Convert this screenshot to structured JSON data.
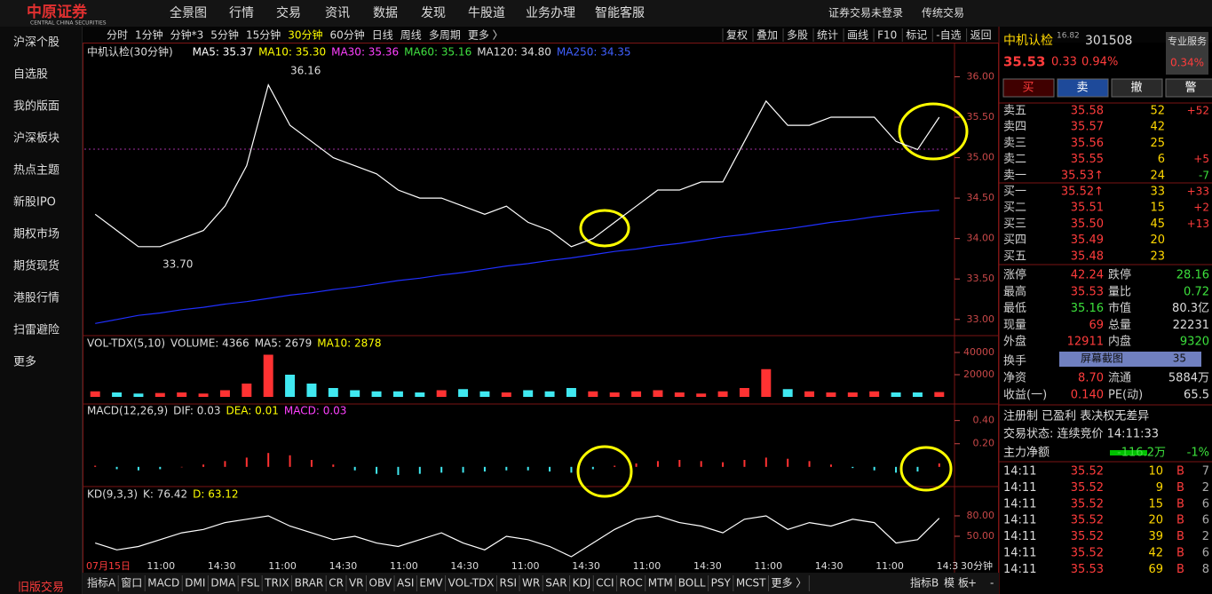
{
  "top_bar": {
    "logo": "中原证券",
    "logo_en": "CENTRAL CHINA SECURITIES",
    "nav": [
      "全景图",
      "行情",
      "交易",
      "资讯",
      "数据",
      "发现",
      "牛股道",
      "业务办理",
      "智能客服"
    ],
    "status": "证券交易未登录",
    "mode": "传统交易"
  },
  "sidebar": {
    "items": [
      "沪深个股",
      "自选股",
      "我的版面",
      "沪深板块",
      "热点主题",
      "新股IPO",
      "期权市场",
      "期货现货",
      "港股行情",
      "扫雷避险",
      "更多"
    ],
    "footer": "旧版交易"
  },
  "toolbar": {
    "periods": [
      "分时",
      "1分钟",
      "分钟*3",
      "5分钟",
      "15分钟",
      "30分钟",
      "60分钟",
      "日线",
      "周线",
      "多周期",
      "更多 〉"
    ],
    "active_period": "30分钟",
    "tools": [
      "复权",
      "叠加",
      "多股",
      "统计",
      "画线",
      "F10",
      "标记",
      "-自选",
      "返回"
    ]
  },
  "chart_data": [
    {
      "type": "line",
      "title": "中机认检(30分钟)",
      "legend": [
        {
          "label": "MA5: 35.37",
          "color": "#ffffff"
        },
        {
          "label": "MA10: 35.30",
          "color": "#ffff00"
        },
        {
          "label": "MA30: 35.36",
          "color": "#ff40ff"
        },
        {
          "label": "MA60: 35.16",
          "color": "#40e040"
        },
        {
          "label": "MA120: 34.80",
          "color": "#dddddd"
        },
        {
          "label": "MA250: 34.35",
          "color": "#4060ff"
        }
      ],
      "annotations": [
        "36.16",
        "33.70"
      ],
      "series": [
        {
          "color": "#ffffff",
          "values": [
            34.3,
            34.1,
            33.9,
            33.9,
            34.0,
            34.1,
            34.4,
            34.9,
            35.9,
            35.4,
            35.2,
            35.0,
            34.9,
            34.8,
            34.6,
            34.5,
            34.5,
            34.4,
            34.3,
            34.4,
            34.2,
            34.1,
            33.9,
            34.0,
            34.2,
            34.4,
            34.6,
            34.6,
            34.7,
            34.7,
            35.2,
            35.7,
            35.4,
            35.4,
            35.5,
            35.5,
            35.5,
            35.2,
            35.1,
            35.5
          ]
        },
        {
          "color": "#2030ff",
          "values": [
            32.95,
            33.0,
            33.05,
            33.08,
            33.12,
            33.15,
            33.19,
            33.22,
            33.26,
            33.3,
            33.33,
            33.37,
            33.4,
            33.44,
            33.48,
            33.51,
            33.55,
            33.58,
            33.62,
            33.66,
            33.69,
            33.73,
            33.76,
            33.8,
            33.84,
            33.87,
            33.91,
            33.94,
            33.98,
            34.02,
            34.05,
            34.09,
            34.12,
            34.16,
            34.2,
            34.23,
            34.27,
            34.3,
            34.33,
            34.35
          ]
        }
      ],
      "ylim": [
        32.8,
        36.4
      ],
      "yticks": [
        {
          "value": 36,
          "label": "36.00"
        },
        {
          "value": 35.5,
          "label": "35.50"
        },
        {
          "value": 35,
          "label": "35.00"
        },
        {
          "value": 34.5,
          "label": "34.50"
        },
        {
          "value": 34,
          "label": "34.00"
        },
        {
          "value": 33.5,
          "label": "33.50"
        },
        {
          "value": 33,
          "label": "33.00"
        }
      ],
      "time_labels": [
        "07月15日",
        "11:00",
        "14:30",
        "11:00",
        "14:30",
        "11:00",
        "14:30",
        "11:00",
        "14:30",
        "11:00",
        "14:30",
        "11:00",
        "14:30",
        "11:00",
        "14:3"
      ]
    },
    {
      "type": "bar",
      "legend": [
        {
          "label": "VOL-TDX(5,10)",
          "color": "#dddddd"
        },
        {
          "label": "VOLUME: 4366",
          "color": "#dddddd"
        },
        {
          "label": "MA5: 2679",
          "color": "#dddddd"
        },
        {
          "label": "MA10: 2878",
          "color": "#ffff00"
        }
      ],
      "values": [
        5000,
        4000,
        3000,
        3500,
        4000,
        3000,
        6000,
        12000,
        38000,
        20000,
        12000,
        8000,
        6000,
        5000,
        5000,
        4000,
        6000,
        7000,
        5000,
        4000,
        6000,
        5000,
        8000,
        5000,
        4000,
        5000,
        6000,
        4000,
        3000,
        5000,
        8000,
        25000,
        7000,
        5000,
        4000,
        4000,
        5000,
        4000,
        4000,
        4366
      ],
      "ylim": [
        0,
        52000
      ],
      "yticks": [
        40000,
        20000
      ]
    },
    {
      "type": "bar",
      "legend": [
        {
          "label": "MACD(12,26,9)",
          "color": "#dddddd"
        },
        {
          "label": "DIF: 0.03",
          "color": "#dddddd"
        },
        {
          "label": "DEA: 0.01",
          "color": "#ffff00"
        },
        {
          "label": "MACD: 0.03",
          "color": "#ff40ff"
        }
      ],
      "values": [
        0.01,
        -0.02,
        -0.03,
        -0.02,
        0.0,
        0.02,
        0.05,
        0.08,
        0.12,
        0.1,
        0.06,
        0.02,
        -0.03,
        -0.06,
        -0.07,
        -0.06,
        -0.05,
        -0.05,
        -0.04,
        -0.03,
        -0.03,
        -0.04,
        -0.05,
        -0.02,
        0.01,
        0.03,
        0.05,
        0.06,
        0.05,
        0.04,
        0.06,
        0.08,
        0.07,
        0.05,
        0.02,
        -0.01,
        -0.03,
        -0.05,
        -0.04,
        0.03
      ],
      "ylim": [
        -0.17,
        0.52
      ],
      "yticks": [
        {
          "value": 0.4,
          "label": "0.40"
        },
        {
          "value": 0.2,
          "label": "0.20"
        }
      ]
    },
    {
      "type": "line",
      "legend": [
        {
          "label": "KD(9,3,3)",
          "color": "#dddddd"
        },
        {
          "label": "K: 76.42",
          "color": "#dddddd"
        },
        {
          "label": "D: 63.12",
          "color": "#ffff00"
        }
      ],
      "series": [
        {
          "color": "#ffffff",
          "values": [
            40,
            30,
            35,
            45,
            55,
            60,
            70,
            75,
            80,
            65,
            55,
            45,
            50,
            40,
            35,
            45,
            55,
            40,
            30,
            50,
            45,
            35,
            20,
            40,
            60,
            75,
            80,
            70,
            65,
            55,
            75,
            80,
            60,
            70,
            65,
            75,
            70,
            40,
            45,
            76.42
          ]
        }
      ],
      "ylim": [
        -3.5,
        117.8
      ],
      "yticks": [
        {
          "value": 80,
          "label": "80.00"
        },
        {
          "value": 50,
          "label": "50.00"
        }
      ]
    }
  ],
  "quote": {
    "name": "中机认检",
    "pe": "16.82",
    "code": "301508",
    "service": "专业服务",
    "price": "35.53",
    "change": "0.33",
    "pct": "0.94%",
    "service_pct": "0.34%",
    "buttons": [
      "买",
      "卖",
      "撤",
      "警"
    ]
  },
  "order_book": {
    "asks": [
      [
        "卖五",
        "35.58",
        "52",
        "+52"
      ],
      [
        "卖四",
        "35.57",
        "42"
      ],
      [
        "卖三",
        "35.56",
        "25"
      ],
      [
        "卖二",
        "35.55",
        "6",
        "+5"
      ],
      [
        "卖一",
        "35.53↑",
        "24",
        "-7"
      ]
    ],
    "bids": [
      [
        "买一",
        "35.52↑",
        "33",
        "+33"
      ],
      [
        "买二",
        "35.51",
        "15",
        "+2"
      ],
      [
        "买三",
        "35.50",
        "45",
        "+13"
      ],
      [
        "买四",
        "35.49",
        "20"
      ],
      [
        "买五",
        "35.48",
        "23"
      ]
    ]
  },
  "stats": [
    [
      "涨停",
      "42.24",
      "跌停",
      "28.16"
    ],
    [
      "最高",
      "35.53",
      "量比",
      "0.72"
    ],
    [
      "最低",
      "35.16",
      "市值",
      "80.3亿"
    ],
    [
      "现量",
      "69",
      "总量",
      "22231"
    ],
    [
      "外盘",
      "12911",
      "内盘",
      "9320"
    ]
  ],
  "turnover": {
    "label": "换手",
    "overlay": "屏幕截图",
    "value": "35"
  },
  "stats2": [
    [
      "净资",
      "8.70",
      "流通",
      "5884万"
    ],
    [
      "收益(一)",
      "0.140",
      "PE(动)",
      "65.5"
    ]
  ],
  "tags": "注册制 已盈利 表决权无差异",
  "status": "交易状态: 连续竞价 14:11:33",
  "flow": {
    "label": "主力净额",
    "value": "-116.2万",
    "pct": "-1%"
  },
  "trades": [
    [
      "14:11",
      "35.52",
      "10",
      "B",
      "7"
    ],
    [
      "14:11",
      "35.52",
      "9",
      "B",
      "2"
    ],
    [
      "14:11",
      "35.52",
      "15",
      "B",
      "6"
    ],
    [
      "14:11",
      "35.52",
      "20",
      "B",
      "6"
    ],
    [
      "14:11",
      "35.52",
      "39",
      "B",
      "2"
    ],
    [
      "14:11",
      "35.52",
      "42",
      "B",
      "6"
    ],
    [
      "14:11",
      "35.53",
      "69",
      "B",
      "8"
    ]
  ],
  "bottom_bar": {
    "tabs": [
      "指标A",
      "窗口",
      "MACD",
      "DMI",
      "DMA",
      "FSL",
      "TRIX",
      "BRAR",
      "CR",
      "VR",
      "OBV",
      "ASI",
      "EMV",
      "VOL-TDX",
      "RSI",
      "WR",
      "SAR",
      "KDJ",
      "CCI",
      "ROC",
      "MTM",
      "BOLL",
      "PSY",
      "MCST",
      "更多 〉"
    ],
    "right": [
      "指标B",
      "模",
      "板",
      "+",
      "-"
    ],
    "period": "30分钟"
  }
}
